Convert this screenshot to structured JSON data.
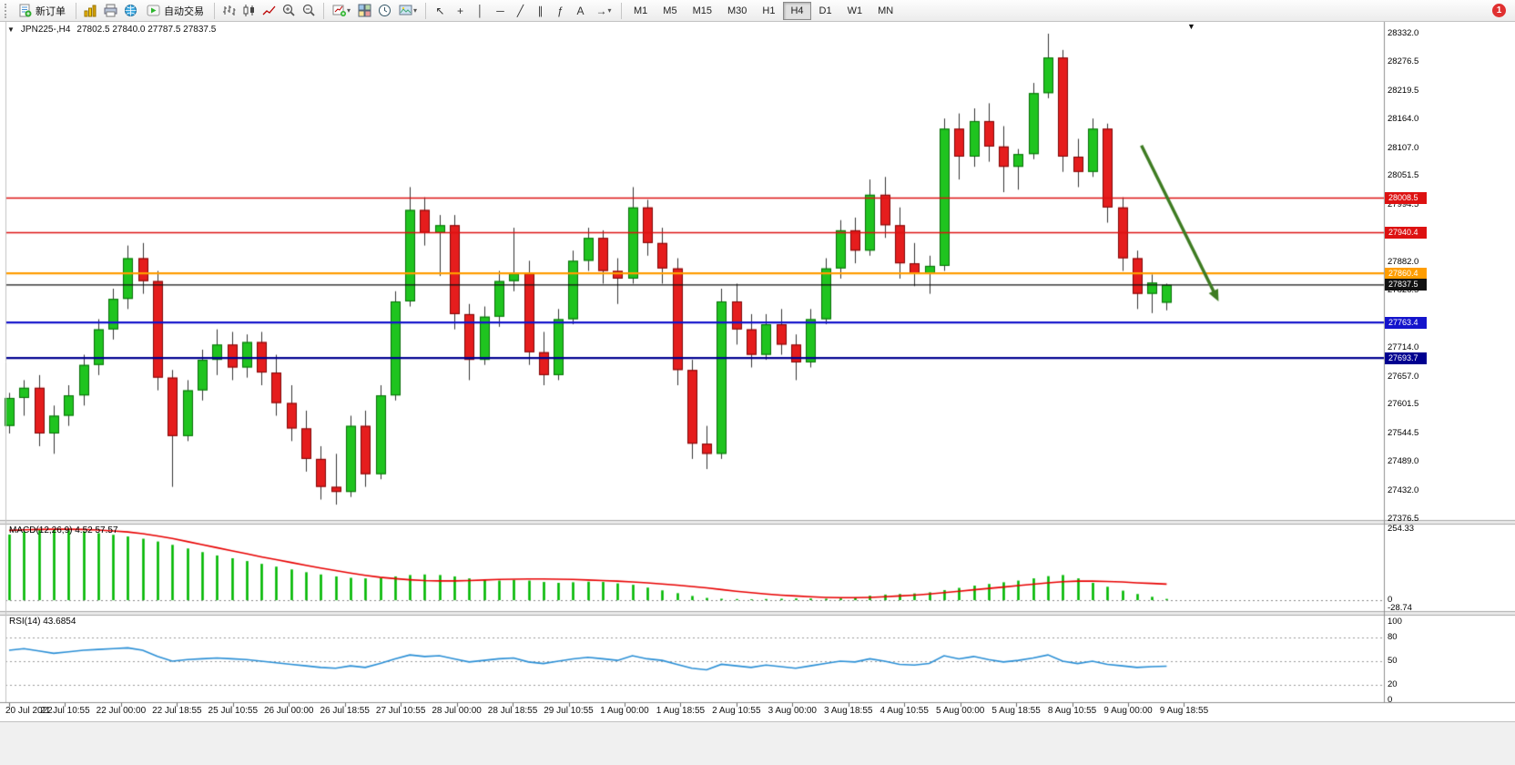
{
  "toolbar": {
    "new_order": "新订单",
    "autotrade": "自动交易",
    "timeframes": [
      "M1",
      "M5",
      "M15",
      "M30",
      "H1",
      "H4",
      "D1",
      "W1",
      "MN"
    ],
    "active_timeframe": "H4",
    "notification_count": "1"
  },
  "icons": {
    "expand": "▼",
    "shift_marker": "▼",
    "dropdown": "▾",
    "cursor": "↖",
    "crosshair": "+",
    "vertical_line": "│",
    "horizontal_line": "─",
    "trendline": "╱",
    "channel": "∥",
    "fibonacci": "ƒ",
    "text_tool": "A",
    "arrow_tool": "→"
  },
  "chart_header": {
    "symbol_period": "JPN225-,H4",
    "ohlc": "27802.5 27840.0 27787.5 27837.5"
  },
  "chart_data": {
    "type": "candlestick",
    "symbol": "JPN225-",
    "timeframe": "H4",
    "price_max": 28332.0,
    "price_min": 27376.5,
    "up_color": "#1fc41f",
    "down_color": "#e51d1d",
    "wick_color": "#333333",
    "axis_ticks": [
      28332.0,
      28276.5,
      28219.5,
      28164.0,
      28107.0,
      28051.5,
      27994.5,
      27882.0,
      27826.5,
      27714.0,
      27657.0,
      27601.5,
      27544.5,
      27489.0,
      27432.0,
      27376.5
    ],
    "time_labels": [
      "20 Jul 2022",
      "21 Jul 10:55",
      "22 Jul 00:00",
      "22 Jul 18:55",
      "25 Jul 10:55",
      "26 Jul 00:00",
      "26 Jul 18:55",
      "27 Jul 10:55",
      "28 Jul 00:00",
      "28 Jul 18:55",
      "29 Jul 10:55",
      "1 Aug 00:00",
      "1 Aug 18:55",
      "2 Aug 10:55",
      "3 Aug 00:00",
      "3 Aug 18:55",
      "4 Aug 10:55",
      "5 Aug 00:00",
      "5 Aug 18:55",
      "8 Aug 10:55",
      "9 Aug 00:00",
      "9 Aug 18:55"
    ],
    "candles": [
      [
        27560,
        27625,
        27545,
        27615
      ],
      [
        27615,
        27650,
        27580,
        27635
      ],
      [
        27635,
        27660,
        27520,
        27545
      ],
      [
        27545,
        27600,
        27505,
        27580
      ],
      [
        27580,
        27640,
        27560,
        27620
      ],
      [
        27620,
        27700,
        27600,
        27680
      ],
      [
        27680,
        27770,
        27660,
        27750
      ],
      [
        27750,
        27830,
        27730,
        27810
      ],
      [
        27810,
        27915,
        27790,
        27890
      ],
      [
        27890,
        27920,
        27820,
        27845
      ],
      [
        27845,
        27865,
        27630,
        27655
      ],
      [
        27655,
        27670,
        27440,
        27540
      ],
      [
        27540,
        27650,
        27530,
        27630
      ],
      [
        27630,
        27710,
        27610,
        27690
      ],
      [
        27690,
        27750,
        27660,
        27720
      ],
      [
        27720,
        27745,
        27650,
        27675
      ],
      [
        27675,
        27740,
        27655,
        27725
      ],
      [
        27725,
        27745,
        27640,
        27665
      ],
      [
        27665,
        27700,
        27580,
        27605
      ],
      [
        27605,
        27640,
        27530,
        27555
      ],
      [
        27555,
        27590,
        27470,
        27495
      ],
      [
        27495,
        27520,
        27415,
        27440
      ],
      [
        27440,
        27505,
        27405,
        27430
      ],
      [
        27430,
        27580,
        27420,
        27560
      ],
      [
        27560,
        27590,
        27440,
        27465
      ],
      [
        27465,
        27640,
        27455,
        27620
      ],
      [
        27620,
        27825,
        27610,
        27805
      ],
      [
        27805,
        28030,
        27795,
        27985
      ],
      [
        27985,
        28010,
        27915,
        27940
      ],
      [
        27940,
        27975,
        27855,
        27955
      ],
      [
        27955,
        27975,
        27750,
        27780
      ],
      [
        27780,
        27800,
        27650,
        27690
      ],
      [
        27690,
        27795,
        27680,
        27775
      ],
      [
        27775,
        27865,
        27755,
        27845
      ],
      [
        27845,
        27950,
        27825,
        27860
      ],
      [
        27860,
        27885,
        27680,
        27705
      ],
      [
        27705,
        27745,
        27640,
        27660
      ],
      [
        27660,
        27790,
        27650,
        27770
      ],
      [
        27770,
        27905,
        27760,
        27885
      ],
      [
        27885,
        27950,
        27865,
        27930
      ],
      [
        27930,
        27945,
        27840,
        27865
      ],
      [
        27865,
        27890,
        27800,
        27850
      ],
      [
        27850,
        28030,
        27840,
        27990
      ],
      [
        27990,
        28005,
        27895,
        27920
      ],
      [
        27920,
        27950,
        27840,
        27870
      ],
      [
        27870,
        27890,
        27640,
        27670
      ],
      [
        27670,
        27690,
        27495,
        27525
      ],
      [
        27525,
        27560,
        27475,
        27505
      ],
      [
        27505,
        27830,
        27495,
        27805
      ],
      [
        27805,
        27840,
        27720,
        27750
      ],
      [
        27750,
        27780,
        27675,
        27700
      ],
      [
        27700,
        27780,
        27690,
        27760
      ],
      [
        27760,
        27790,
        27700,
        27720
      ],
      [
        27720,
        27740,
        27650,
        27685
      ],
      [
        27685,
        27790,
        27675,
        27770
      ],
      [
        27770,
        27890,
        27760,
        27870
      ],
      [
        27870,
        27965,
        27850,
        27945
      ],
      [
        27945,
        27970,
        27880,
        27905
      ],
      [
        27905,
        28045,
        27895,
        28015
      ],
      [
        28015,
        28050,
        27930,
        27955
      ],
      [
        27955,
        27990,
        27850,
        27880
      ],
      [
        27880,
        27920,
        27835,
        27860
      ],
      [
        27860,
        27895,
        27820,
        27875
      ],
      [
        27875,
        28165,
        27865,
        28145
      ],
      [
        28145,
        28175,
        28045,
        28090
      ],
      [
        28090,
        28185,
        28070,
        28160
      ],
      [
        28160,
        28195,
        28080,
        28110
      ],
      [
        28110,
        28150,
        28020,
        28070
      ],
      [
        28070,
        28105,
        28025,
        28095
      ],
      [
        28095,
        28235,
        28085,
        28215
      ],
      [
        28215,
        28332,
        28205,
        28285
      ],
      [
        28285,
        28300,
        28060,
        28090
      ],
      [
        28090,
        28125,
        28030,
        28060
      ],
      [
        28060,
        28165,
        28050,
        28145
      ],
      [
        28145,
        28155,
        27960,
        27990
      ],
      [
        27990,
        28010,
        27865,
        27890
      ],
      [
        27890,
        27905,
        27790,
        27820
      ],
      [
        27820,
        27858,
        27782,
        27842
      ],
      [
        27802.5,
        27840.0,
        27787.5,
        27837.5
      ]
    ],
    "hlines": [
      {
        "price": 28008.5,
        "label": "28008.5",
        "color": "#dd1111",
        "width": 1.6
      },
      {
        "price": 27940.4,
        "label": "27940.4",
        "color": "#dd1111",
        "width": 1.6
      },
      {
        "price": 27860.4,
        "label": "27860.4",
        "color": "#ff9d00",
        "width": 2.2
      },
      {
        "price": 27763.4,
        "label": "27763.4",
        "color": "#1414cc",
        "width": 2.2
      },
      {
        "price": 27693.7,
        "label": "27693.7",
        "color": "#000090",
        "width": 2.2
      }
    ],
    "current_price": {
      "value": 27837.5,
      "label": "27837.5",
      "color": "#111111"
    },
    "trend_arrow": {
      "from_index": 76.3,
      "from_price": 28112,
      "to_index": 81.5,
      "to_price": 27805,
      "color": "#3e7c22",
      "width": 3.5
    },
    "macd": {
      "label": "MACD(12,26,9) 4.52 57.57",
      "max": 254.33,
      "min": -28.74,
      "scale_labels": [
        "254.33",
        "0",
        "-28.74"
      ],
      "histogram_color": "#00b800",
      "signal_color": "#e80000",
      "histogram": [
        235,
        245,
        252,
        254.33,
        250,
        246,
        240,
        234,
        228,
        220,
        210,
        198,
        185,
        172,
        160,
        150,
        140,
        130,
        120,
        110,
        100,
        92,
        85,
        80,
        78,
        80,
        85,
        90,
        92,
        90,
        85,
        78,
        72,
        70,
        72,
        70,
        65,
        62,
        64,
        66,
        65,
        60,
        55,
        45,
        35,
        25,
        15,
        8,
        5,
        4,
        3,
        4,
        5,
        6,
        6,
        5,
        6,
        10,
        16,
        20,
        22,
        24,
        28,
        36,
        44,
        52,
        58,
        64,
        70,
        78,
        86,
        90,
        78,
        62,
        48,
        34,
        22,
        12,
        4.5
      ],
      "signal": [
        250,
        252,
        253,
        254,
        254,
        253,
        251,
        248,
        244,
        238,
        230,
        221,
        210,
        199,
        188,
        177,
        166,
        155,
        145,
        135,
        125,
        115,
        106,
        97,
        89,
        82,
        77,
        73,
        70,
        69,
        69,
        70,
        72,
        74,
        75,
        76,
        76,
        75,
        74,
        72,
        70,
        68,
        65,
        62,
        58,
        54,
        49,
        44,
        38,
        32,
        27,
        22,
        18,
        15,
        12,
        10,
        9,
        9,
        10,
        12,
        15,
        18,
        22,
        27,
        32,
        37,
        42,
        47,
        52,
        57,
        62,
        66,
        68,
        68,
        67,
        65,
        62,
        60,
        57.57
      ]
    },
    "rsi": {
      "label": "RSI(14) 43.6854",
      "max": 100,
      "min": 0,
      "levels": [
        80,
        50,
        20
      ],
      "scale_labels": [
        "100",
        "80",
        "50",
        "20",
        "0"
      ],
      "line_color": "#2a8fd6",
      "values": [
        64,
        66,
        63,
        60,
        62,
        64,
        65,
        66,
        67,
        64,
        56,
        50,
        52,
        53,
        54,
        53,
        52,
        50,
        48,
        46,
        44,
        42,
        41,
        44,
        42,
        47,
        53,
        58,
        56,
        57,
        53,
        49,
        51,
        53,
        54,
        49,
        47,
        50,
        53,
        55,
        53,
        51,
        57,
        53,
        51,
        46,
        41,
        39,
        46,
        44,
        42,
        45,
        43,
        41,
        44,
        47,
        50,
        49,
        53,
        50,
        46,
        45,
        47,
        57,
        53,
        56,
        52,
        49,
        51,
        54,
        58,
        50,
        47,
        50,
        46,
        44,
        42,
        43,
        43.6854
      ]
    }
  }
}
